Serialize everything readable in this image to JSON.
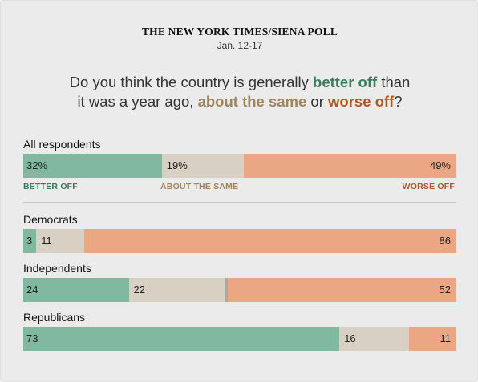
{
  "header": {
    "source": "THE NEW YORK TIMES/SIENA POLL",
    "date": "Jan. 12-17"
  },
  "question": {
    "part1": "Do you think the country is generally ",
    "better": "better off",
    "part2": " than",
    "part3": "it was a year ago, ",
    "same": "about the same",
    "part4": " or ",
    "worse": "worse off",
    "part5": "?"
  },
  "colors": {
    "better": "#80b8a0",
    "same": "#d9d0c4",
    "worse": "#eba783",
    "better_text": "#3a7d5c",
    "same_text": "#a0845c",
    "worse_text": "#b5541f",
    "unsure": "#a9a9a9"
  },
  "legend": {
    "better": "BETTER OFF",
    "same": "ABOUT THE SAME",
    "worse": "WORSE OFF"
  },
  "chart_data": {
    "type": "bar",
    "orientation": "horizontal-stacked",
    "series_keys": [
      "better",
      "same",
      "worse"
    ],
    "groups": [
      {
        "name": "All respondents",
        "better": 32,
        "same": 19,
        "worse": 49,
        "better_label": "32%",
        "same_label": "19%",
        "worse_label": "49%"
      },
      {
        "name": "Democrats",
        "better": 3,
        "same": 11,
        "worse": 86,
        "better_label": "3",
        "same_label": "11",
        "worse_label": "86"
      },
      {
        "name": "Independents",
        "better": 24,
        "same": 22,
        "worse": 52,
        "better_label": "24",
        "same_label": "22",
        "worse_label": "52"
      },
      {
        "name": "Republicans",
        "better": 73,
        "same": 16,
        "worse": 11,
        "better_label": "73",
        "same_label": "16",
        "worse_label": "11"
      }
    ],
    "xlim": [
      0,
      100
    ]
  }
}
